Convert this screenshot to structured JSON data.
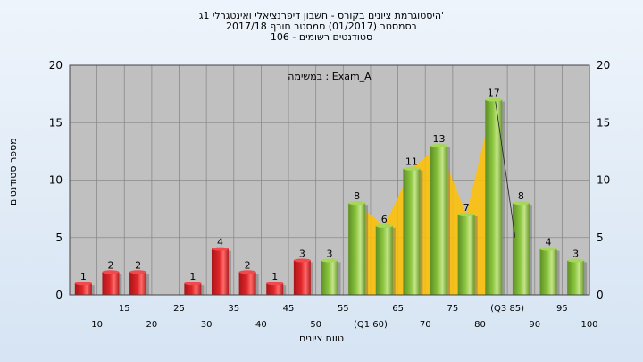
{
  "header": {
    "line1": "היסטוגרמת ציונים בקורס - חשבון דיפרנציאלי ואינטגרלי 1ג'",
    "line2": "בסמסטר  (01/2017)  סמסטר חורף 2017/18",
    "line3": "סטודנטים רשומים - 106"
  },
  "chart_data": {
    "type": "bar",
    "x": [
      10,
      15,
      20,
      25,
      30,
      35,
      40,
      45,
      50,
      55,
      60,
      65,
      70,
      75,
      80,
      85,
      90,
      95,
      100
    ],
    "tick_labels": [
      "10",
      "15",
      "20",
      "25",
      "30",
      "35",
      "40",
      "45",
      "50",
      "55",
      "(Q1 60)",
      "65",
      "70",
      "75",
      "80",
      "(Q3 85)",
      "90",
      "95",
      "100"
    ],
    "values": [
      1,
      2,
      2,
      0,
      1,
      4,
      2,
      1,
      3,
      3,
      8,
      6,
      11,
      13,
      7,
      17,
      8,
      4,
      3
    ],
    "fail_threshold": 55,
    "ylabel": "מספר סטודנטים",
    "xlabel": "טווח ציונים",
    "ylim": [
      0,
      20
    ],
    "yticks": [
      0,
      5,
      10,
      15,
      20
    ],
    "annotation": "במשימה : Exam_A",
    "grid": true,
    "colors": {
      "fail_bar": "#e0262a",
      "pass_bar": "#8cc63f",
      "quartile_area": "#ffc000",
      "plot_bg": "#c0c0c0"
    }
  }
}
